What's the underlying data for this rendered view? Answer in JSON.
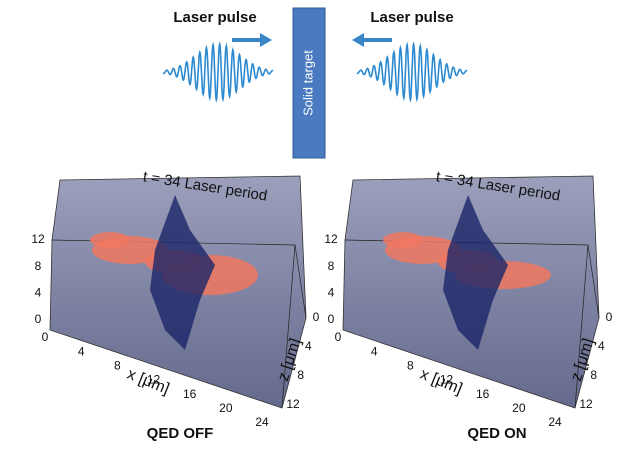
{
  "top": {
    "left_label": "Laser pulse",
    "right_label": "Laser pulse",
    "target": "Solid target"
  },
  "panels": [
    {
      "time_label": "t = 34 Laser period",
      "vertical_ticks": [
        "0",
        "4",
        "8",
        "12"
      ],
      "x_ticks": [
        "0",
        "4",
        "8",
        "12",
        "16",
        "20",
        "24"
      ],
      "z_ticks": [
        "0",
        "4",
        "8",
        "12"
      ],
      "x_title": "x [μm]",
      "z_title": "z [μm]",
      "caption": "QED OFF"
    },
    {
      "time_label": "t = 34 Laser period",
      "vertical_ticks": [
        "0",
        "4",
        "8",
        "12"
      ],
      "x_ticks": [
        "0",
        "4",
        "8",
        "12",
        "16",
        "20",
        "24"
      ],
      "z_ticks": [
        "0",
        "4",
        "8",
        "12"
      ],
      "x_title": "x [μm]",
      "z_title": "z [μm]",
      "caption": "QED ON"
    }
  ]
}
